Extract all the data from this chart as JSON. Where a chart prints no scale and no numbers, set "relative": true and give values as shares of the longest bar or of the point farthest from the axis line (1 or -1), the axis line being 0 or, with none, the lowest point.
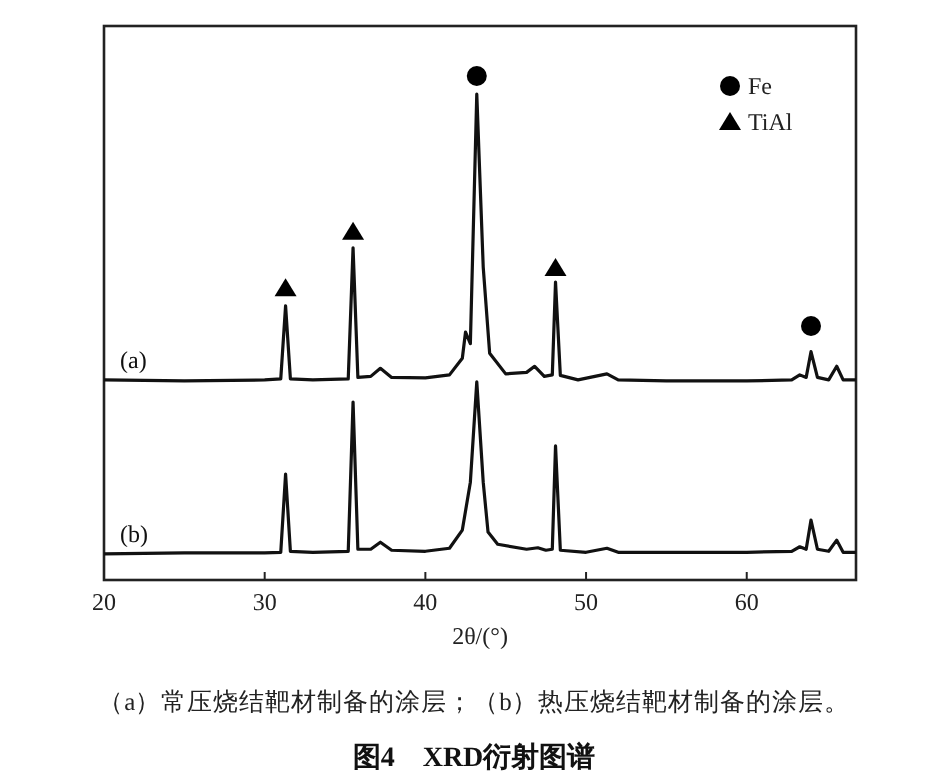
{
  "chart_data": {
    "type": "line",
    "title": "图4　XRD衍射图谱",
    "xlabel": "2θ/(°)",
    "annotations": [
      "（a）常压烧结靶材制备的涂层；（b）热压烧结靶材制备的涂层。"
    ],
    "relative": true,
    "xlim": [
      20,
      66.8
    ],
    "xticks": [
      20,
      30,
      40,
      50,
      60
    ],
    "grid": false,
    "legend": "top right",
    "series": [
      {
        "name": "(a)",
        "color": "#111111",
        "marker": "none",
        "x": [
          20,
          25,
          30,
          31.0,
          31.3,
          31.6,
          33,
          35.2,
          35.5,
          35.8,
          36.6,
          37.2,
          37.9,
          40,
          41.5,
          42.3,
          42.5,
          42.8,
          43.2,
          43.6,
          44,
          45,
          46.3,
          46.8,
          47.4,
          47.9,
          48.1,
          48.4,
          49.5,
          51.3,
          52,
          55,
          60,
          62.8,
          63.3,
          63.7,
          64,
          64.4,
          65.1,
          65.6,
          66,
          66.8
        ],
        "values": [
          0.397,
          0.395,
          0.397,
          0.399,
          0.544,
          0.399,
          0.397,
          0.399,
          0.659,
          0.402,
          0.404,
          0.42,
          0.402,
          0.401,
          0.407,
          0.44,
          0.492,
          0.469,
          0.964,
          0.621,
          0.45,
          0.409,
          0.412,
          0.424,
          0.404,
          0.407,
          0.591,
          0.406,
          0.397,
          0.409,
          0.397,
          0.395,
          0.395,
          0.397,
          0.407,
          0.402,
          0.453,
          0.402,
          0.397,
          0.424,
          0.397,
          0.397
        ]
      },
      {
        "name": "(b)",
        "color": "#111111",
        "marker": "none",
        "x": [
          20,
          25,
          30,
          31.0,
          31.3,
          31.6,
          33,
          35.2,
          35.5,
          35.8,
          36.6,
          37.2,
          37.9,
          40,
          41.5,
          42.3,
          42.8,
          43.2,
          43.6,
          43.9,
          44.5,
          46.3,
          47,
          47.5,
          47.9,
          48.1,
          48.4,
          50,
          51.3,
          52,
          60,
          62.8,
          63.3,
          63.7,
          64,
          64.4,
          65.1,
          65.6,
          66,
          66.8
        ],
        "values": [
          0.052,
          0.054,
          0.054,
          0.055,
          0.21,
          0.057,
          0.055,
          0.057,
          0.353,
          0.061,
          0.061,
          0.075,
          0.059,
          0.057,
          0.063,
          0.099,
          0.194,
          0.393,
          0.194,
          0.095,
          0.071,
          0.061,
          0.064,
          0.059,
          0.061,
          0.266,
          0.059,
          0.055,
          0.063,
          0.055,
          0.055,
          0.057,
          0.066,
          0.061,
          0.119,
          0.061,
          0.057,
          0.079,
          0.055,
          0.055
        ]
      },
      {
        "name": "Fe",
        "type": "scatter",
        "marker": "circle",
        "color": "#000000",
        "x": [
          43.2,
          64.0
        ],
        "values": [
          1.0,
          0.504
        ]
      },
      {
        "name": "TiAl",
        "type": "scatter",
        "marker": "triangle",
        "color": "#000000",
        "x": [
          31.3,
          35.5,
          48.1
        ],
        "values": [
          0.579,
          0.691,
          0.619
        ]
      }
    ]
  }
}
